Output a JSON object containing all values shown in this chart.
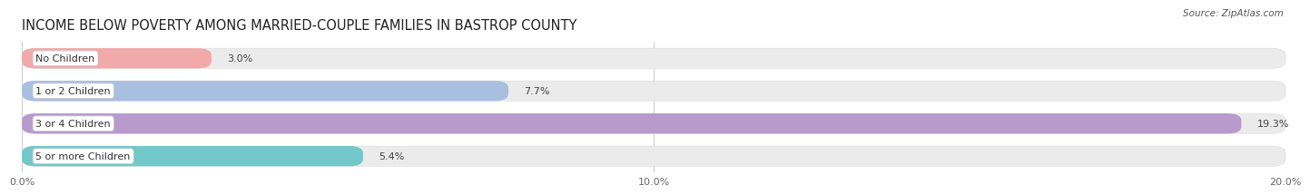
{
  "title": "INCOME BELOW POVERTY AMONG MARRIED-COUPLE FAMILIES IN BASTROP COUNTY",
  "source": "Source: ZipAtlas.com",
  "categories": [
    "No Children",
    "1 or 2 Children",
    "3 or 4 Children",
    "5 or more Children"
  ],
  "values": [
    3.0,
    7.7,
    19.3,
    5.4
  ],
  "bar_colors": [
    "#f2a9aa",
    "#a8bfe0",
    "#b89acc",
    "#72c8c8"
  ],
  "xlim": [
    0,
    20.0
  ],
  "xticks": [
    0.0,
    10.0,
    20.0
  ],
  "xticklabels": [
    "0.0%",
    "10.0%",
    "20.0%"
  ],
  "background_color": "#ffffff",
  "bar_background_color": "#ebebeb",
  "title_fontsize": 10.5,
  "label_fontsize": 8.0,
  "value_fontsize": 8.0,
  "source_fontsize": 7.5
}
